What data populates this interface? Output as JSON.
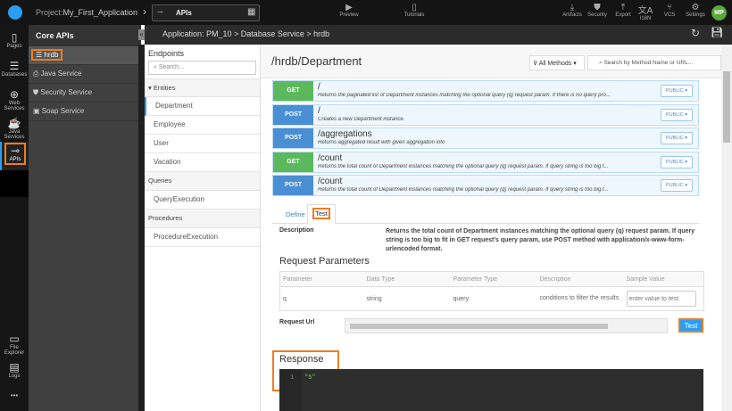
{
  "topbar": {
    "project_prefix": "Project:",
    "project_name": "My_First_Application",
    "mode": "APIs",
    "preview": "Preview",
    "tutorials": "Tutorials",
    "artifacts": "Artifacts",
    "security": "Security",
    "export": "Export",
    "i18n": "I18N",
    "vcs": "VCS",
    "settings": "Settings",
    "avatar": "MP"
  },
  "rail": {
    "items": [
      {
        "label": "Pages",
        "icon": "page-icon"
      },
      {
        "label": "Databases",
        "icon": "database-icon"
      },
      {
        "label": "Web Services",
        "icon": "globe-icon"
      },
      {
        "label": "Java Services",
        "icon": "coffee-icon"
      },
      {
        "label": "APIs",
        "icon": "api-icon"
      }
    ],
    "bottom": [
      {
        "label": "File Explorer",
        "icon": "folder-icon"
      },
      {
        "label": "Logs",
        "icon": "log-icon"
      }
    ],
    "more": "•••"
  },
  "sidebar": {
    "title": "Core APIs",
    "items": [
      {
        "label": "hrdb"
      },
      {
        "label": "Java Service"
      },
      {
        "label": "Security Service"
      },
      {
        "label": "Soap Service"
      }
    ]
  },
  "breadcrumb": "Application: PM_10 > Database Service > hrdb",
  "endpoints": {
    "title": "Endpoints",
    "search_placeholder": "Search...",
    "entities_label": "Entities",
    "entities": [
      "Department",
      "Employee",
      "User",
      "Vacation"
    ],
    "queries_label": "Queries",
    "queries": [
      "QueryExecution"
    ],
    "procedures_label": "Procedures",
    "procedures": [
      "ProcedureExecution"
    ]
  },
  "main": {
    "title": "/hrdb/Department",
    "filter": "All Methods",
    "search_placeholder": "Search by Method Name or URL...",
    "apis": [
      {
        "method": "GET",
        "path": "/",
        "desc": "Returns the paginated list of Department instances matching the optional query (q) request param. If there is no query pro...",
        "access": "PUBLIC"
      },
      {
        "method": "POST",
        "path": "/",
        "desc": "Creates a new Department instance.",
        "access": "PUBLIC"
      },
      {
        "method": "POST",
        "path": "/aggregations",
        "desc": "Returns aggregated result with given aggregation info",
        "access": "PUBLIC"
      },
      {
        "method": "GET",
        "path": "/count",
        "desc": "Returns the total count of Department instances matching the optional query (q) request param. If query string is too big t...",
        "access": "PUBLIC"
      },
      {
        "method": "POST",
        "path": "/count",
        "desc": "Returns the total count of Department instances matching the optional query (q) request param. If query string is too big t...",
        "access": "PUBLIC"
      }
    ],
    "tabs": [
      "Define",
      "Test"
    ],
    "description_label": "Description",
    "description": "Returns the total count of Department instances matching the optional query (q) request param. If query string is too big to fit in GET request's query param, use POST method with application/x-www-form-urlencoded format.",
    "req_params_title": "Request Parameters",
    "params_headers": [
      "Parameter",
      "Data Type",
      "Parameter Type",
      "Description",
      "Sample Value"
    ],
    "params": [
      {
        "name": "q",
        "type": "string",
        "ptype": "query",
        "desc": "conditions to filter the results",
        "placeholder": "enter value to test"
      }
    ],
    "request_url_label": "Request Url",
    "test_button": "Test",
    "response_title": "Response",
    "response_line": "1",
    "response_value": "\"5\""
  },
  "colors": {
    "get": "#5cb85c",
    "post": "#4a8fd4",
    "accent": "#f07c21"
  }
}
